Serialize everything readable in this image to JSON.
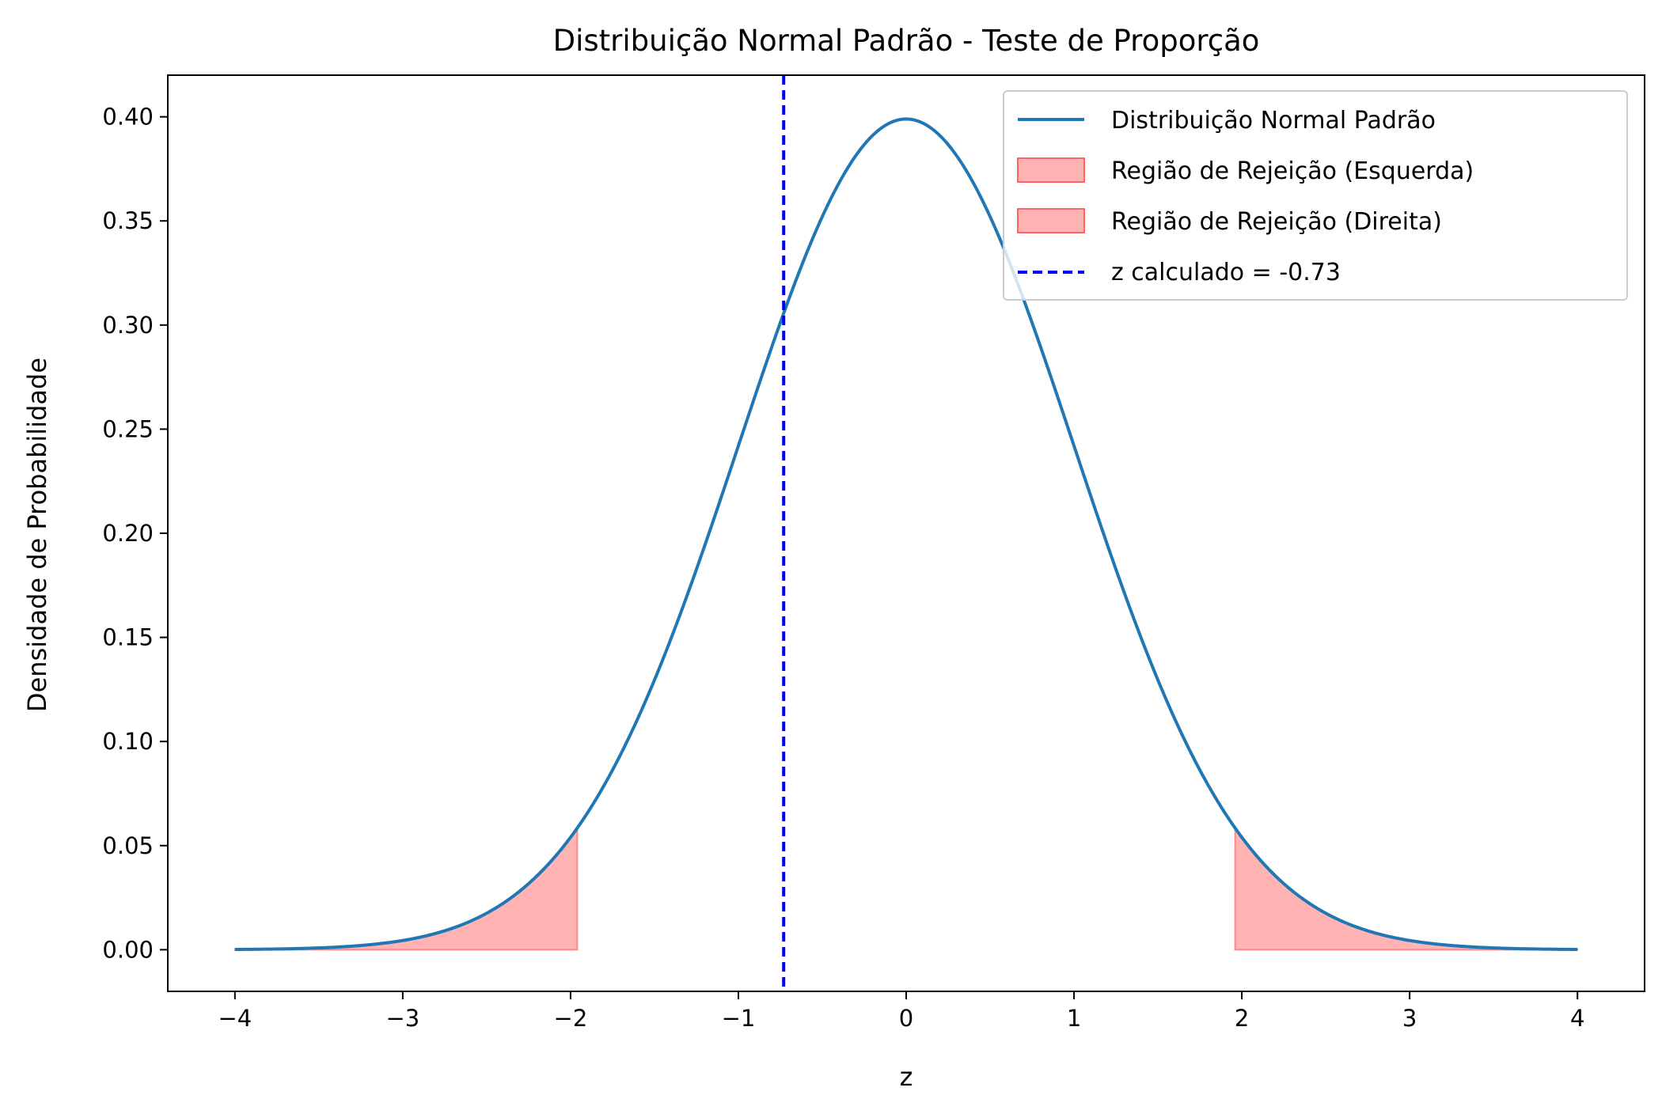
{
  "chart_data": {
    "type": "line",
    "title": "Distribuição Normal Padrão - Teste de Proporção",
    "xlabel": "z",
    "ylabel": "Densidade de Probabilidade",
    "xlim": [
      -4.4,
      4.4
    ],
    "ylim": [
      -0.02,
      0.42
    ],
    "x_ticks": [
      -4,
      -3,
      -2,
      -1,
      0,
      1,
      2,
      3,
      4
    ],
    "x_tick_labels": [
      "−4",
      "−3",
      "−2",
      "−1",
      "0",
      "1",
      "2",
      "3",
      "4"
    ],
    "y_ticks": [
      0.0,
      0.05,
      0.1,
      0.15,
      0.2,
      0.25,
      0.3,
      0.35,
      0.4
    ],
    "y_tick_labels": [
      "0.00",
      "0.05",
      "0.10",
      "0.15",
      "0.20",
      "0.25",
      "0.30",
      "0.35",
      "0.40"
    ],
    "grid": false,
    "legend_position": "upper-right",
    "series": [
      {
        "name": "Distribuição Normal Padrão",
        "kind": "line",
        "color": "#1f77b4",
        "distribution": "standard-normal-pdf",
        "x_range": [
          -4,
          4
        ],
        "peak": 0.399
      },
      {
        "name": "Região de Rejeição (Esquerda)",
        "kind": "fill",
        "color": "#ff9999",
        "x_range": [
          -4,
          -1.96
        ]
      },
      {
        "name": "Região de Rejeição (Direita)",
        "kind": "fill",
        "color": "#ff9999",
        "x_range": [
          1.96,
          4
        ]
      },
      {
        "name": "z calculado = -0.73",
        "kind": "vline",
        "color": "#0000ff",
        "x": -0.73
      }
    ]
  }
}
